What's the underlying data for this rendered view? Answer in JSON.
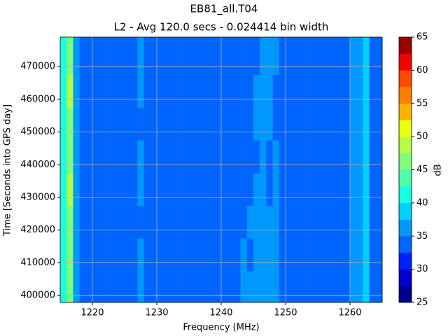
{
  "chart_data": {
    "type": "heatmap",
    "title": "EB81_all.T04",
    "subtitle": "L2 - Avg 120.0 secs - 0.024414 bin width",
    "x_label": "Frequency (MHz)",
    "y_label": "Time [Seconds into GPS day]",
    "colorbar_label": "dB",
    "x": [
      1215.5,
      1216.5,
      1217.5,
      1218.5,
      1219.5,
      1220.5,
      1221.5,
      1222.5,
      1223.5,
      1224.5,
      1225.5,
      1226.5,
      1227.5,
      1228.5,
      1229.5,
      1230.5,
      1231.5,
      1232.5,
      1233.5,
      1234.5,
      1235.5,
      1236.5,
      1237.5,
      1238.5,
      1239.5,
      1240.5,
      1241.5,
      1242.5,
      1243.5,
      1244.5,
      1245.5,
      1246.5,
      1247.5,
      1248.5,
      1249.5,
      1250.5,
      1251.5,
      1252.5,
      1253.5,
      1254.5,
      1255.5,
      1256.5,
      1257.5,
      1258.5,
      1259.5,
      1260.5,
      1261.5,
      1262.5,
      1263.5,
      1264.5
    ],
    "y": [
      402500,
      412500,
      422500,
      432500,
      442500,
      452500,
      462500,
      472500
    ],
    "z": [
      [
        40,
        46,
        37,
        34,
        34,
        34,
        34,
        34,
        34,
        34,
        34,
        34,
        36,
        34,
        34,
        34,
        34,
        34,
        34,
        34,
        34,
        34,
        34,
        34,
        34,
        34,
        34,
        34,
        36,
        36,
        35,
        36,
        36,
        37,
        34,
        34,
        34,
        34,
        34,
        34,
        34,
        34,
        34,
        34,
        34,
        36,
        36,
        38,
        34,
        34
      ],
      [
        41,
        47,
        37,
        34,
        34,
        34,
        34,
        34,
        34,
        34,
        34,
        34,
        36,
        34,
        34,
        34,
        34,
        34,
        34,
        34,
        34,
        34,
        34,
        34,
        34,
        34,
        34,
        34,
        36,
        34,
        35,
        35,
        36,
        37,
        34,
        34,
        34,
        34,
        34,
        34,
        34,
        34,
        34,
        34,
        34,
        36,
        36,
        38,
        34,
        34
      ],
      [
        40,
        47,
        37,
        34,
        34,
        34,
        34,
        34,
        34,
        34,
        34,
        34,
        34,
        34,
        34,
        34,
        34,
        34,
        34,
        34,
        34,
        34,
        34,
        34,
        34,
        34,
        34,
        34,
        34,
        36,
        36,
        35,
        35,
        36,
        34,
        34,
        34,
        34,
        34,
        34,
        34,
        34,
        34,
        34,
        34,
        36,
        36,
        38,
        34,
        34
      ],
      [
        41,
        48,
        37,
        34,
        34,
        34,
        34,
        34,
        34,
        34,
        34,
        34,
        36,
        34,
        34,
        34,
        34,
        34,
        34,
        34,
        34,
        34,
        34,
        34,
        34,
        34,
        34,
        34,
        34,
        34,
        36,
        35,
        34,
        36,
        34,
        34,
        34,
        34,
        34,
        34,
        34,
        34,
        34,
        34,
        34,
        36,
        36,
        38,
        34,
        34
      ],
      [
        40,
        47,
        37,
        34,
        34,
        34,
        34,
        34,
        34,
        34,
        34,
        34,
        36,
        34,
        34,
        34,
        34,
        34,
        34,
        34,
        34,
        34,
        34,
        34,
        34,
        34,
        34,
        34,
        34,
        34,
        34,
        35,
        34,
        35,
        34,
        34,
        34,
        34,
        34,
        34,
        34,
        34,
        34,
        34,
        34,
        36,
        36,
        38,
        34,
        34
      ],
      [
        41,
        47,
        37,
        34,
        34,
        34,
        34,
        34,
        34,
        34,
        34,
        34,
        34,
        34,
        34,
        34,
        34,
        34,
        34,
        34,
        34,
        34,
        34,
        34,
        34,
        34,
        34,
        34,
        34,
        34,
        36,
        36,
        35,
        34,
        34,
        34,
        34,
        34,
        34,
        34,
        34,
        34,
        34,
        34,
        34,
        36,
        36,
        38,
        34,
        34
      ],
      [
        40,
        48,
        37,
        34,
        34,
        34,
        34,
        34,
        34,
        34,
        34,
        34,
        36,
        34,
        34,
        34,
        34,
        34,
        34,
        34,
        34,
        34,
        34,
        34,
        34,
        34,
        34,
        34,
        34,
        34,
        36,
        36,
        36,
        34,
        34,
        34,
        34,
        34,
        34,
        34,
        34,
        34,
        34,
        34,
        34,
        36,
        36,
        38,
        34,
        34
      ],
      [
        40,
        47,
        37,
        34,
        34,
        34,
        34,
        34,
        34,
        34,
        34,
        34,
        36,
        34,
        34,
        34,
        34,
        34,
        34,
        34,
        34,
        34,
        34,
        34,
        34,
        34,
        34,
        34,
        34,
        34,
        34,
        35,
        36,
        36,
        34,
        34,
        34,
        34,
        34,
        34,
        34,
        34,
        34,
        34,
        34,
        36,
        36,
        38,
        34,
        34
      ]
    ],
    "xlim": [
      1215,
      1265
    ],
    "ylim": [
      397900,
      479000
    ],
    "xticks": [
      1220,
      1230,
      1240,
      1250,
      1260
    ],
    "yticks": [
      400000,
      410000,
      420000,
      430000,
      440000,
      450000,
      460000,
      470000
    ],
    "levels": [
      25,
      27.5,
      30,
      32.5,
      35,
      37.5,
      40,
      42.5,
      45,
      47.5,
      50,
      52.5,
      55,
      57.5,
      60,
      62.5,
      65
    ],
    "colors": [
      "#00008f",
      "#0000d0",
      "#0020ff",
      "#0064ff",
      "#0098ff",
      "#00d0ff",
      "#16ffe1",
      "#4dffaa",
      "#7dff7a",
      "#b4ff43",
      "#eaff0d",
      "#ffb200",
      "#ff7d00",
      "#ff4800",
      "#ed0400",
      "#9c0000"
    ],
    "colorbar_ticks": [
      25,
      30,
      35,
      40,
      45,
      50,
      55,
      60,
      65
    ],
    "grid": true
  }
}
